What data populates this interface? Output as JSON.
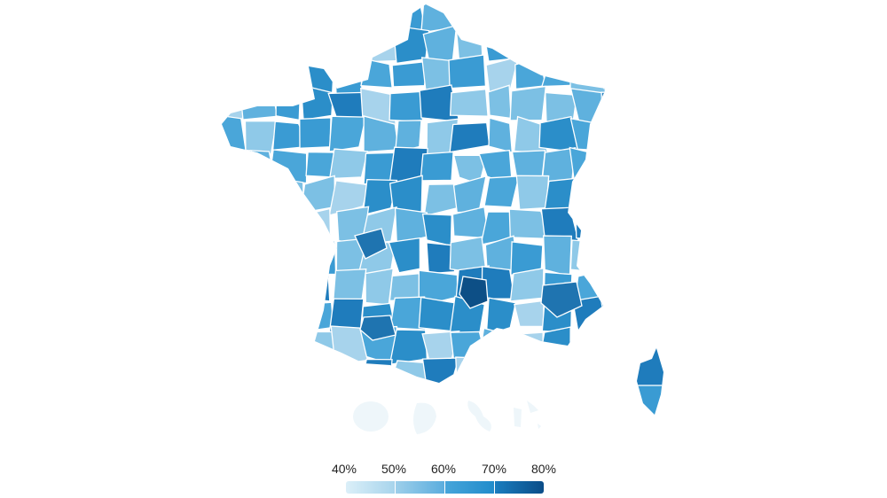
{
  "legend": {
    "labels": [
      "40%",
      "50%",
      "60%",
      "70%",
      "80%"
    ],
    "segments": [
      {
        "from": "#dbeff8",
        "to": "#a7d4ec"
      },
      {
        "from": "#9dcfea",
        "to": "#5badde"
      },
      {
        "from": "#46a5da",
        "to": "#218ccb"
      },
      {
        "from": "#1a7dbf",
        "to": "#0b4d88"
      }
    ]
  },
  "colors": {
    "palette": [
      "#7cc0e4",
      "#5fb1de",
      "#4aa6d9",
      "#3a9bd3",
      "#2b8ec9",
      "#8fc9e8",
      "#a7d3ec",
      "#1f7cbc"
    ],
    "darkest": "#0d4f86",
    "overseas": "#eef6fa",
    "border": "#ffffff"
  }
}
